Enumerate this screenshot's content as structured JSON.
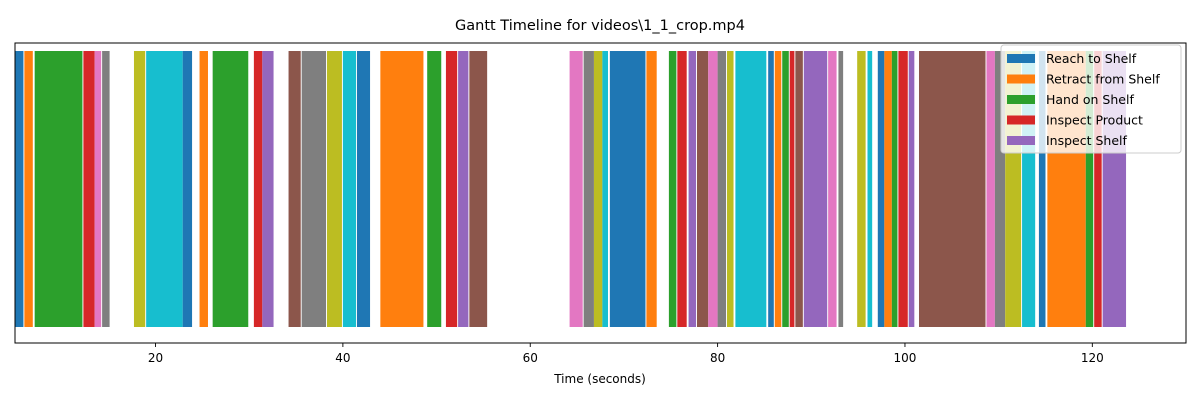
{
  "chart_data": {
    "type": "gantt",
    "title": "Gantt Timeline for videos\\1_1_crop.mp4",
    "xlabel": "Time (seconds)",
    "ylabel": "",
    "xlim": [
      5,
      130
    ],
    "xticks": [
      20,
      40,
      60,
      80,
      100,
      120
    ],
    "grid": false,
    "legend_position": "top-right",
    "legend": [
      {
        "label": "Reach to Shelf",
        "color": "#1f77b4"
      },
      {
        "label": "Retract from Shelf",
        "color": "#ff7f0e"
      },
      {
        "label": "Hand on Shelf",
        "color": "#2ca02c"
      },
      {
        "label": "Inspect Product",
        "color": "#d62728"
      },
      {
        "label": "Inspect Shelf",
        "color": "#9467bd"
      }
    ],
    "segments": [
      {
        "start": 5.0,
        "end": 5.9,
        "color": "#1f77b4"
      },
      {
        "start": 6.0,
        "end": 6.9,
        "color": "#ff7f0e"
      },
      {
        "start": 7.1,
        "end": 12.2,
        "color": "#2ca02c"
      },
      {
        "start": 12.3,
        "end": 13.5,
        "color": "#d62728"
      },
      {
        "start": 13.5,
        "end": 14.2,
        "color": "#e377c2"
      },
      {
        "start": 14.3,
        "end": 15.1,
        "color": "#7f7f7f"
      },
      {
        "start": 17.7,
        "end": 18.9,
        "color": "#bcbd22"
      },
      {
        "start": 19.0,
        "end": 22.9,
        "color": "#17becf"
      },
      {
        "start": 22.9,
        "end": 23.9,
        "color": "#1f77b4"
      },
      {
        "start": 24.7,
        "end": 25.6,
        "color": "#ff7f0e"
      },
      {
        "start": 26.1,
        "end": 29.9,
        "color": "#2ca02c"
      },
      {
        "start": 30.5,
        "end": 31.4,
        "color": "#d62728"
      },
      {
        "start": 31.4,
        "end": 32.6,
        "color": "#9467bd"
      },
      {
        "start": 34.2,
        "end": 35.5,
        "color": "#8c564b"
      },
      {
        "start": 35.6,
        "end": 38.2,
        "color": "#7f7f7f"
      },
      {
        "start": 38.3,
        "end": 39.9,
        "color": "#bcbd22"
      },
      {
        "start": 40.0,
        "end": 41.4,
        "color": "#17becf"
      },
      {
        "start": 41.5,
        "end": 42.9,
        "color": "#1f77b4"
      },
      {
        "start": 44.0,
        "end": 48.6,
        "color": "#ff7f0e"
      },
      {
        "start": 49.0,
        "end": 50.5,
        "color": "#2ca02c"
      },
      {
        "start": 51.0,
        "end": 52.2,
        "color": "#d62728"
      },
      {
        "start": 52.3,
        "end": 53.4,
        "color": "#9467bd"
      },
      {
        "start": 53.5,
        "end": 55.4,
        "color": "#8c564b"
      },
      {
        "start": 64.2,
        "end": 65.6,
        "color": "#e377c2"
      },
      {
        "start": 65.7,
        "end": 66.8,
        "color": "#7f7f7f"
      },
      {
        "start": 66.8,
        "end": 67.7,
        "color": "#bcbd22"
      },
      {
        "start": 67.7,
        "end": 68.3,
        "color": "#17becf"
      },
      {
        "start": 68.5,
        "end": 72.3,
        "color": "#1f77b4"
      },
      {
        "start": 72.4,
        "end": 73.5,
        "color": "#ff7f0e"
      },
      {
        "start": 74.8,
        "end": 75.6,
        "color": "#2ca02c"
      },
      {
        "start": 75.7,
        "end": 76.7,
        "color": "#d62728"
      },
      {
        "start": 76.9,
        "end": 77.7,
        "color": "#9467bd"
      },
      {
        "start": 77.8,
        "end": 79.0,
        "color": "#8c564b"
      },
      {
        "start": 79.0,
        "end": 80.0,
        "color": "#e377c2"
      },
      {
        "start": 80.0,
        "end": 80.9,
        "color": "#7f7f7f"
      },
      {
        "start": 81.0,
        "end": 81.7,
        "color": "#bcbd22"
      },
      {
        "start": 81.9,
        "end": 85.2,
        "color": "#17becf"
      },
      {
        "start": 85.4,
        "end": 86.0,
        "color": "#1f77b4"
      },
      {
        "start": 86.1,
        "end": 86.8,
        "color": "#ff7f0e"
      },
      {
        "start": 86.9,
        "end": 87.6,
        "color": "#2ca02c"
      },
      {
        "start": 87.7,
        "end": 88.2,
        "color": "#d62728"
      },
      {
        "start": 88.3,
        "end": 89.1,
        "color": "#8c564b"
      },
      {
        "start": 89.2,
        "end": 91.7,
        "color": "#9467bd"
      },
      {
        "start": 91.8,
        "end": 92.7,
        "color": "#e377c2"
      },
      {
        "start": 92.9,
        "end": 93.4,
        "color": "#7f7f7f"
      },
      {
        "start": 94.9,
        "end": 95.8,
        "color": "#bcbd22"
      },
      {
        "start": 96.0,
        "end": 96.5,
        "color": "#17becf"
      },
      {
        "start": 97.1,
        "end": 97.8,
        "color": "#1f77b4"
      },
      {
        "start": 97.8,
        "end": 98.6,
        "color": "#ff7f0e"
      },
      {
        "start": 98.6,
        "end": 99.2,
        "color": "#2ca02c"
      },
      {
        "start": 99.3,
        "end": 100.3,
        "color": "#d62728"
      },
      {
        "start": 100.4,
        "end": 101.0,
        "color": "#9467bd"
      },
      {
        "start": 101.5,
        "end": 108.6,
        "color": "#8c564b"
      },
      {
        "start": 108.7,
        "end": 109.6,
        "color": "#e377c2"
      },
      {
        "start": 109.6,
        "end": 110.7,
        "color": "#7f7f7f"
      },
      {
        "start": 110.7,
        "end": 112.4,
        "color": "#bcbd22"
      },
      {
        "start": 112.5,
        "end": 113.9,
        "color": "#17becf"
      },
      {
        "start": 114.3,
        "end": 115.0,
        "color": "#1f77b4"
      },
      {
        "start": 115.2,
        "end": 119.3,
        "color": "#ff7f0e"
      },
      {
        "start": 119.3,
        "end": 120.1,
        "color": "#2ca02c"
      },
      {
        "start": 120.2,
        "end": 121.0,
        "color": "#d62728"
      },
      {
        "start": 121.1,
        "end": 123.6,
        "color": "#9467bd"
      }
    ]
  }
}
